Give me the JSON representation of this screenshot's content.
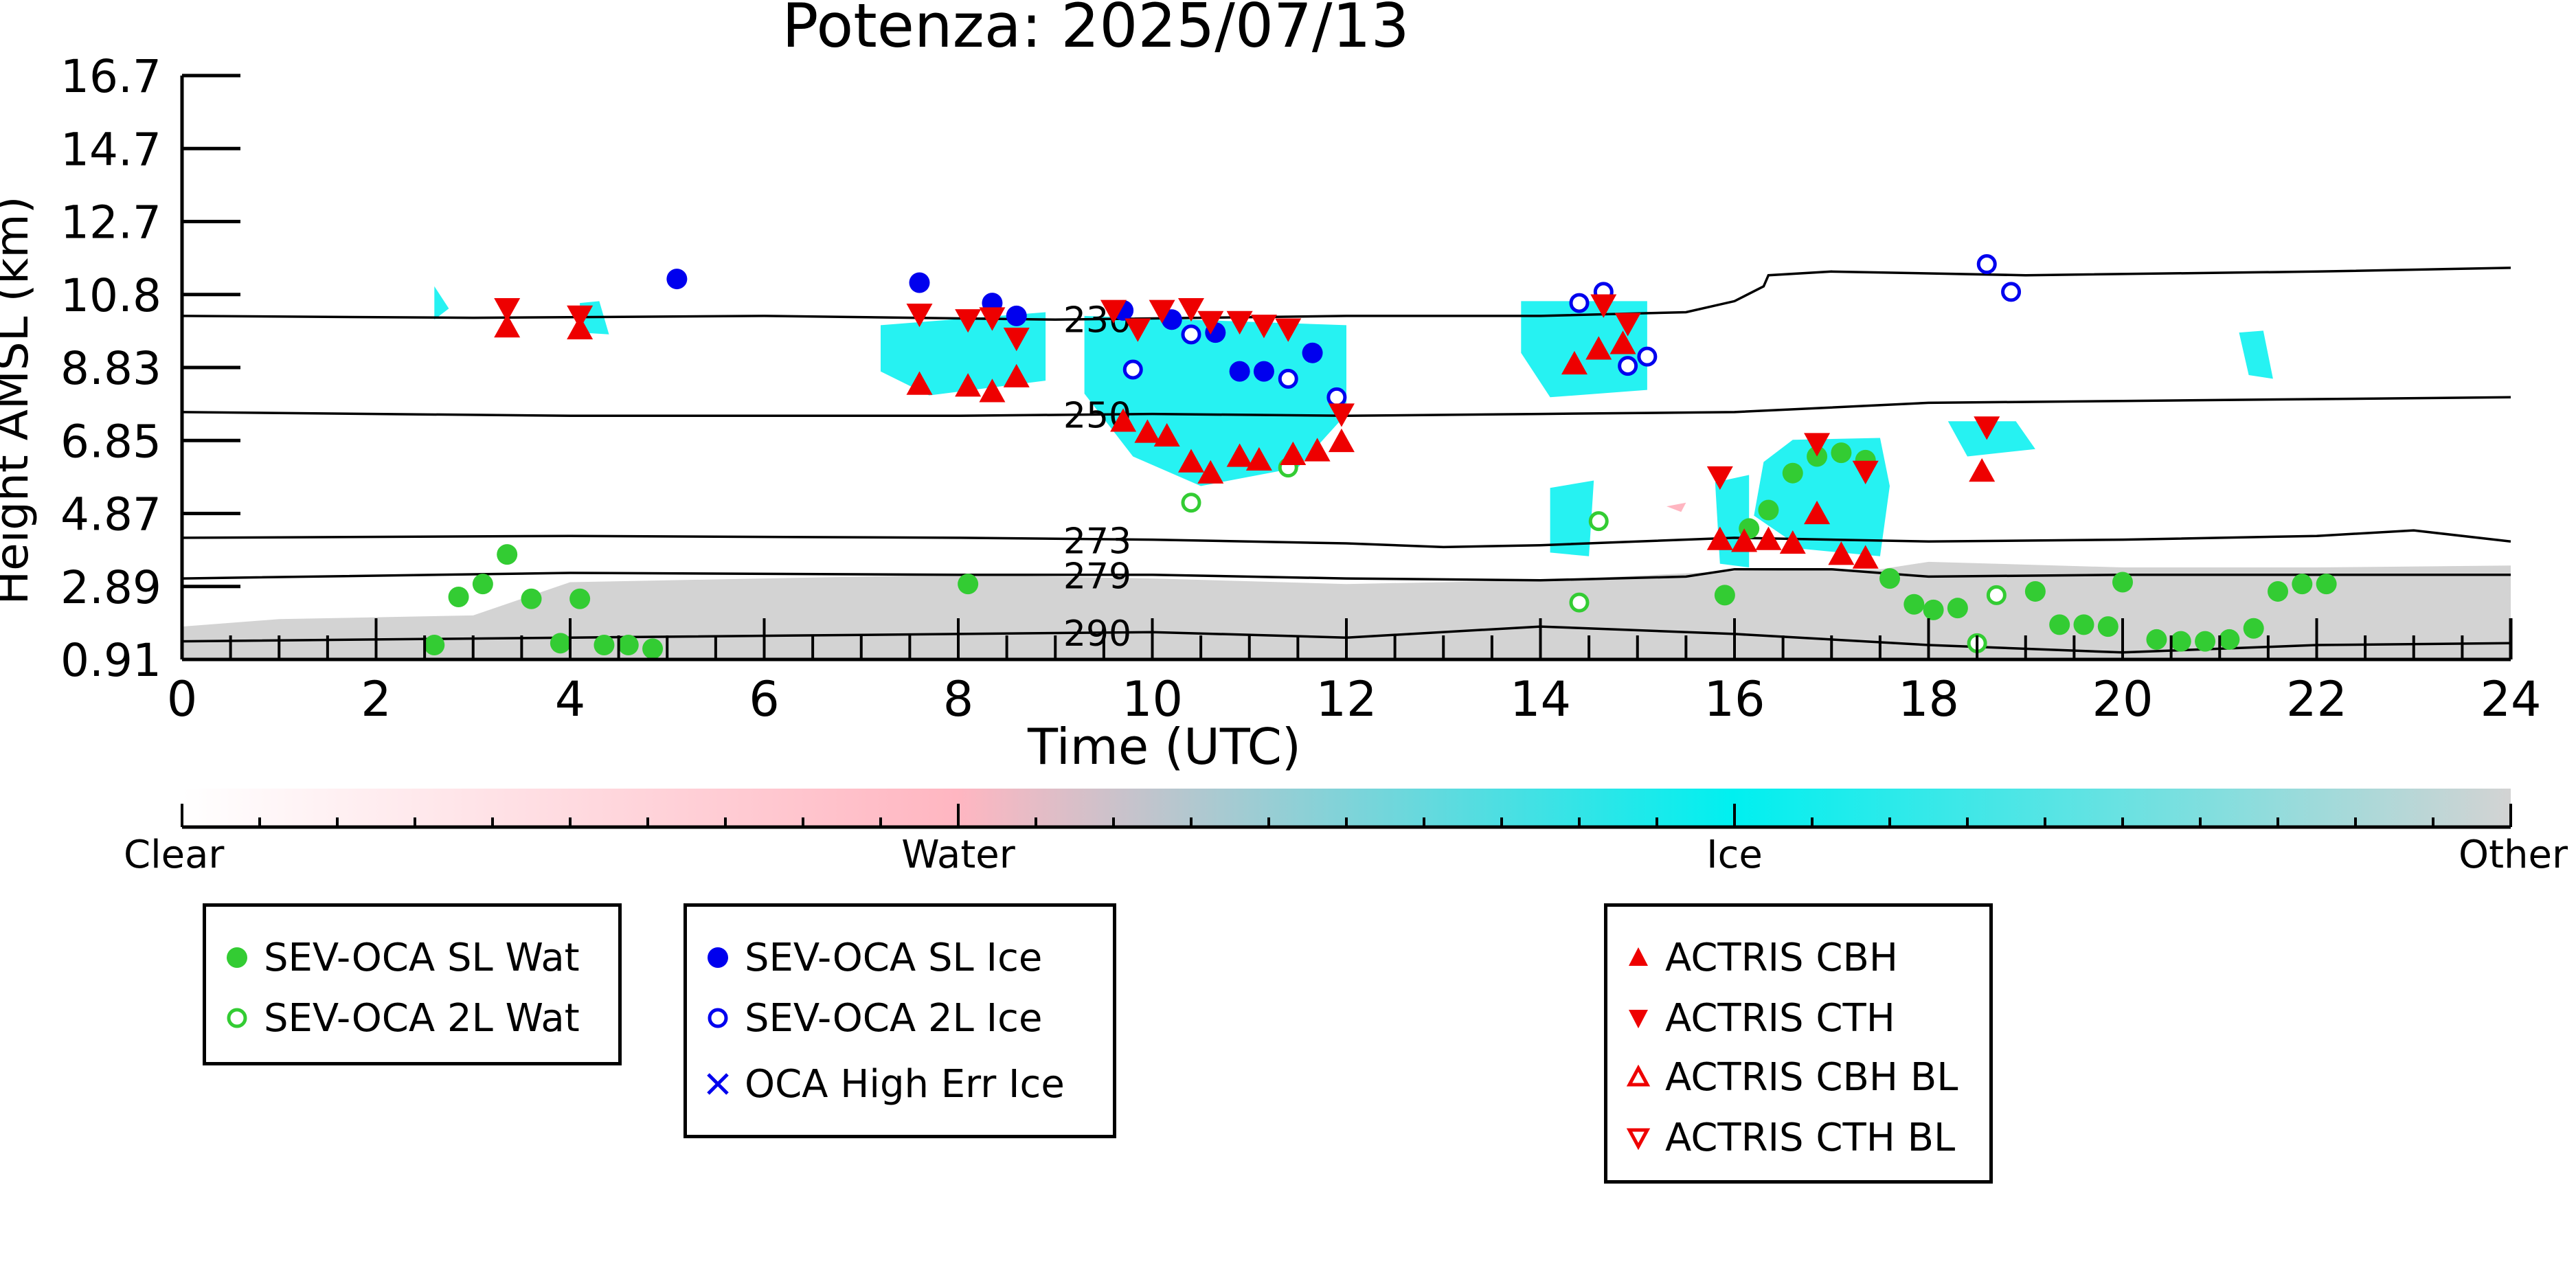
{
  "chart_data": {
    "type": "scatter",
    "title": "Potenza: 2025/07/13",
    "xlabel": "Time (UTC)",
    "ylabel": "Height AMSL (km)",
    "xlim": [
      0,
      24
    ],
    "ylim": [
      0.91,
      16.7
    ],
    "x_ticks": [
      "0",
      "2",
      "4",
      "6",
      "8",
      "10",
      "12",
      "14",
      "16",
      "18",
      "20",
      "22",
      "24"
    ],
    "y_ticks": [
      "0.91",
      "2.89",
      "4.87",
      "6.85",
      "8.83",
      "10.8",
      "12.7",
      "14.7",
      "16.7"
    ],
    "colorbar": {
      "labels": [
        "Clear",
        "Water",
        "Ice",
        "Other"
      ],
      "colors": [
        "#ffffff",
        "#ffb6c1",
        "#00f0f0",
        "#d3d3d3"
      ]
    },
    "isotherms": [
      {
        "label": "230",
        "points": [
          [
            0,
            10.2
          ],
          [
            3,
            10.15
          ],
          [
            6,
            10.2
          ],
          [
            9,
            10.1
          ],
          [
            12,
            10.2
          ],
          [
            14,
            10.2
          ],
          [
            15.5,
            10.3
          ],
          [
            16,
            10.6
          ],
          [
            16.3,
            11.0
          ],
          [
            16.35,
            11.3
          ],
          [
            17,
            11.4
          ],
          [
            19,
            11.3
          ],
          [
            22,
            11.4
          ],
          [
            24,
            11.5
          ]
        ]
      },
      {
        "label": "250",
        "points": [
          [
            0,
            7.6
          ],
          [
            4,
            7.5
          ],
          [
            8,
            7.5
          ],
          [
            10,
            7.55
          ],
          [
            12,
            7.5
          ],
          [
            14,
            7.55
          ],
          [
            16,
            7.6
          ],
          [
            18,
            7.85
          ],
          [
            20,
            7.9
          ],
          [
            22,
            7.95
          ],
          [
            24,
            8.0
          ]
        ]
      },
      {
        "label": "273",
        "points": [
          [
            0,
            4.2
          ],
          [
            4,
            4.25
          ],
          [
            8,
            4.2
          ],
          [
            10,
            4.15
          ],
          [
            12,
            4.05
          ],
          [
            13,
            3.95
          ],
          [
            14,
            4.0
          ],
          [
            15,
            4.1
          ],
          [
            16,
            4.2
          ],
          [
            18,
            4.1
          ],
          [
            20,
            4.15
          ],
          [
            22,
            4.25
          ],
          [
            23,
            4.4
          ],
          [
            24,
            4.1
          ]
        ]
      },
      {
        "label": "279",
        "points": [
          [
            0,
            3.1
          ],
          [
            4,
            3.25
          ],
          [
            8,
            3.2
          ],
          [
            10,
            3.2
          ],
          [
            12,
            3.1
          ],
          [
            14,
            3.05
          ],
          [
            15.5,
            3.15
          ],
          [
            16,
            3.35
          ],
          [
            17,
            3.35
          ],
          [
            18,
            3.15
          ],
          [
            20,
            3.2
          ],
          [
            22,
            3.2
          ],
          [
            24,
            3.2
          ]
        ]
      },
      {
        "label": "290",
        "points": [
          [
            0,
            1.4
          ],
          [
            4,
            1.5
          ],
          [
            8,
            1.6
          ],
          [
            10,
            1.65
          ],
          [
            12,
            1.5
          ],
          [
            14,
            1.8
          ],
          [
            16,
            1.6
          ],
          [
            18,
            1.3
          ],
          [
            20,
            1.1
          ],
          [
            22,
            1.3
          ],
          [
            24,
            1.35
          ]
        ]
      }
    ],
    "series": [
      {
        "name": "SEV-OCA SL Wat",
        "marker": "filled-circle",
        "color": "#33cc33",
        "points": [
          [
            2.6,
            1.3
          ],
          [
            2.85,
            2.6
          ],
          [
            3.1,
            2.95
          ],
          [
            3.35,
            3.75
          ],
          [
            3.6,
            2.55
          ],
          [
            4.1,
            2.55
          ],
          [
            3.9,
            1.35
          ],
          [
            4.35,
            1.3
          ],
          [
            4.6,
            1.3
          ],
          [
            4.85,
            1.2
          ],
          [
            8.1,
            2.95
          ],
          [
            15.9,
            2.65
          ],
          [
            16.15,
            4.45
          ],
          [
            16.35,
            4.95
          ],
          [
            16.6,
            5.95
          ],
          [
            16.85,
            6.4
          ],
          [
            17.1,
            6.5
          ],
          [
            17.35,
            6.3
          ],
          [
            17.6,
            3.1
          ],
          [
            17.85,
            2.4
          ],
          [
            18.05,
            2.25
          ],
          [
            18.3,
            2.3
          ],
          [
            19.1,
            2.75
          ],
          [
            19.35,
            1.85
          ],
          [
            19.6,
            1.85
          ],
          [
            19.85,
            1.8
          ],
          [
            20.0,
            3.0
          ],
          [
            20.35,
            1.45
          ],
          [
            20.6,
            1.4
          ],
          [
            20.85,
            1.4
          ],
          [
            21.1,
            1.45
          ],
          [
            21.35,
            1.75
          ],
          [
            21.6,
            2.75
          ],
          [
            21.85,
            2.95
          ],
          [
            22.1,
            2.95
          ]
        ]
      },
      {
        "name": "SEV-OCA 2L Wat",
        "marker": "open-circle",
        "color": "#33cc33",
        "points": [
          [
            10.4,
            5.15
          ],
          [
            11.4,
            6.1
          ],
          [
            14.4,
            2.45
          ],
          [
            14.6,
            4.65
          ],
          [
            18.7,
            2.65
          ],
          [
            18.5,
            1.35
          ]
        ]
      },
      {
        "name": "SEV-OCA SL Ice",
        "marker": "filled-circle",
        "color": "#0000ee",
        "points": [
          [
            5.1,
            11.2
          ],
          [
            7.6,
            11.1
          ],
          [
            8.35,
            10.55
          ],
          [
            8.6,
            10.2
          ],
          [
            9.7,
            10.35
          ],
          [
            10.2,
            10.1
          ],
          [
            10.65,
            9.75
          ],
          [
            10.9,
            8.7
          ],
          [
            11.15,
            8.7
          ],
          [
            11.65,
            9.2
          ]
        ]
      },
      {
        "name": "SEV-OCA 2L Ice",
        "marker": "open-circle",
        "color": "#0000ee",
        "points": [
          [
            9.8,
            8.75
          ],
          [
            10.4,
            9.7
          ],
          [
            11.4,
            8.5
          ],
          [
            11.9,
            8.0
          ],
          [
            14.4,
            10.55
          ],
          [
            14.65,
            10.85
          ],
          [
            14.9,
            8.85
          ],
          [
            15.1,
            9.1
          ],
          [
            18.6,
            11.6
          ],
          [
            18.85,
            10.85
          ]
        ]
      },
      {
        "name": "OCA High Err Ice",
        "marker": "x",
        "color": "#0000ee",
        "points": []
      },
      {
        "name": "ACTRIS CBH",
        "marker": "triangle-up",
        "color": "#ee0000",
        "points": [
          [
            3.35,
            9.9
          ],
          [
            4.1,
            9.85
          ],
          [
            7.6,
            8.35
          ],
          [
            8.1,
            8.3
          ],
          [
            8.35,
            8.15
          ],
          [
            8.6,
            8.55
          ],
          [
            9.7,
            7.35
          ],
          [
            9.95,
            7.05
          ],
          [
            10.15,
            6.95
          ],
          [
            10.4,
            6.25
          ],
          [
            10.6,
            5.95
          ],
          [
            10.9,
            6.4
          ],
          [
            11.1,
            6.3
          ],
          [
            11.45,
            6.45
          ],
          [
            11.7,
            6.55
          ],
          [
            11.95,
            6.8
          ],
          [
            14.35,
            8.9
          ],
          [
            14.6,
            9.3
          ],
          [
            14.85,
            9.45
          ],
          [
            15.85,
            4.15
          ],
          [
            16.1,
            4.1
          ],
          [
            16.35,
            4.15
          ],
          [
            16.6,
            4.05
          ],
          [
            16.85,
            4.85
          ],
          [
            17.1,
            3.75
          ],
          [
            17.35,
            3.65
          ],
          [
            18.55,
            6.0
          ]
        ]
      },
      {
        "name": "ACTRIS CTH",
        "marker": "triangle-down",
        "color": "#ee0000",
        "points": [
          [
            3.35,
            10.4
          ],
          [
            4.1,
            10.2
          ],
          [
            7.6,
            10.25
          ],
          [
            8.1,
            10.1
          ],
          [
            8.35,
            10.15
          ],
          [
            8.6,
            9.6
          ],
          [
            9.6,
            10.35
          ],
          [
            9.85,
            9.85
          ],
          [
            10.1,
            10.35
          ],
          [
            10.4,
            10.4
          ],
          [
            10.6,
            10.05
          ],
          [
            10.9,
            10.05
          ],
          [
            11.15,
            9.95
          ],
          [
            11.4,
            9.85
          ],
          [
            11.95,
            7.55
          ],
          [
            14.65,
            10.5
          ],
          [
            14.9,
            10.0
          ],
          [
            15.85,
            5.85
          ],
          [
            16.85,
            6.75
          ],
          [
            17.35,
            6.0
          ],
          [
            18.6,
            7.2
          ]
        ]
      },
      {
        "name": "ACTRIS CBH BL",
        "marker": "open-triangle-up",
        "color": "#ee0000",
        "points": []
      },
      {
        "name": "ACTRIS CTH BL",
        "marker": "open-triangle-down",
        "color": "#ee0000",
        "points": []
      }
    ]
  },
  "legends": {
    "water": [
      "SEV-OCA SL Wat",
      "SEV-OCA 2L Wat"
    ],
    "ice": [
      "SEV-OCA SL Ice",
      "SEV-OCA 2L Ice",
      "OCA High Err Ice"
    ],
    "actris": [
      "ACTRIS CBH",
      "ACTRIS CTH",
      "ACTRIS CBH BL",
      "ACTRIS CTH BL"
    ]
  }
}
